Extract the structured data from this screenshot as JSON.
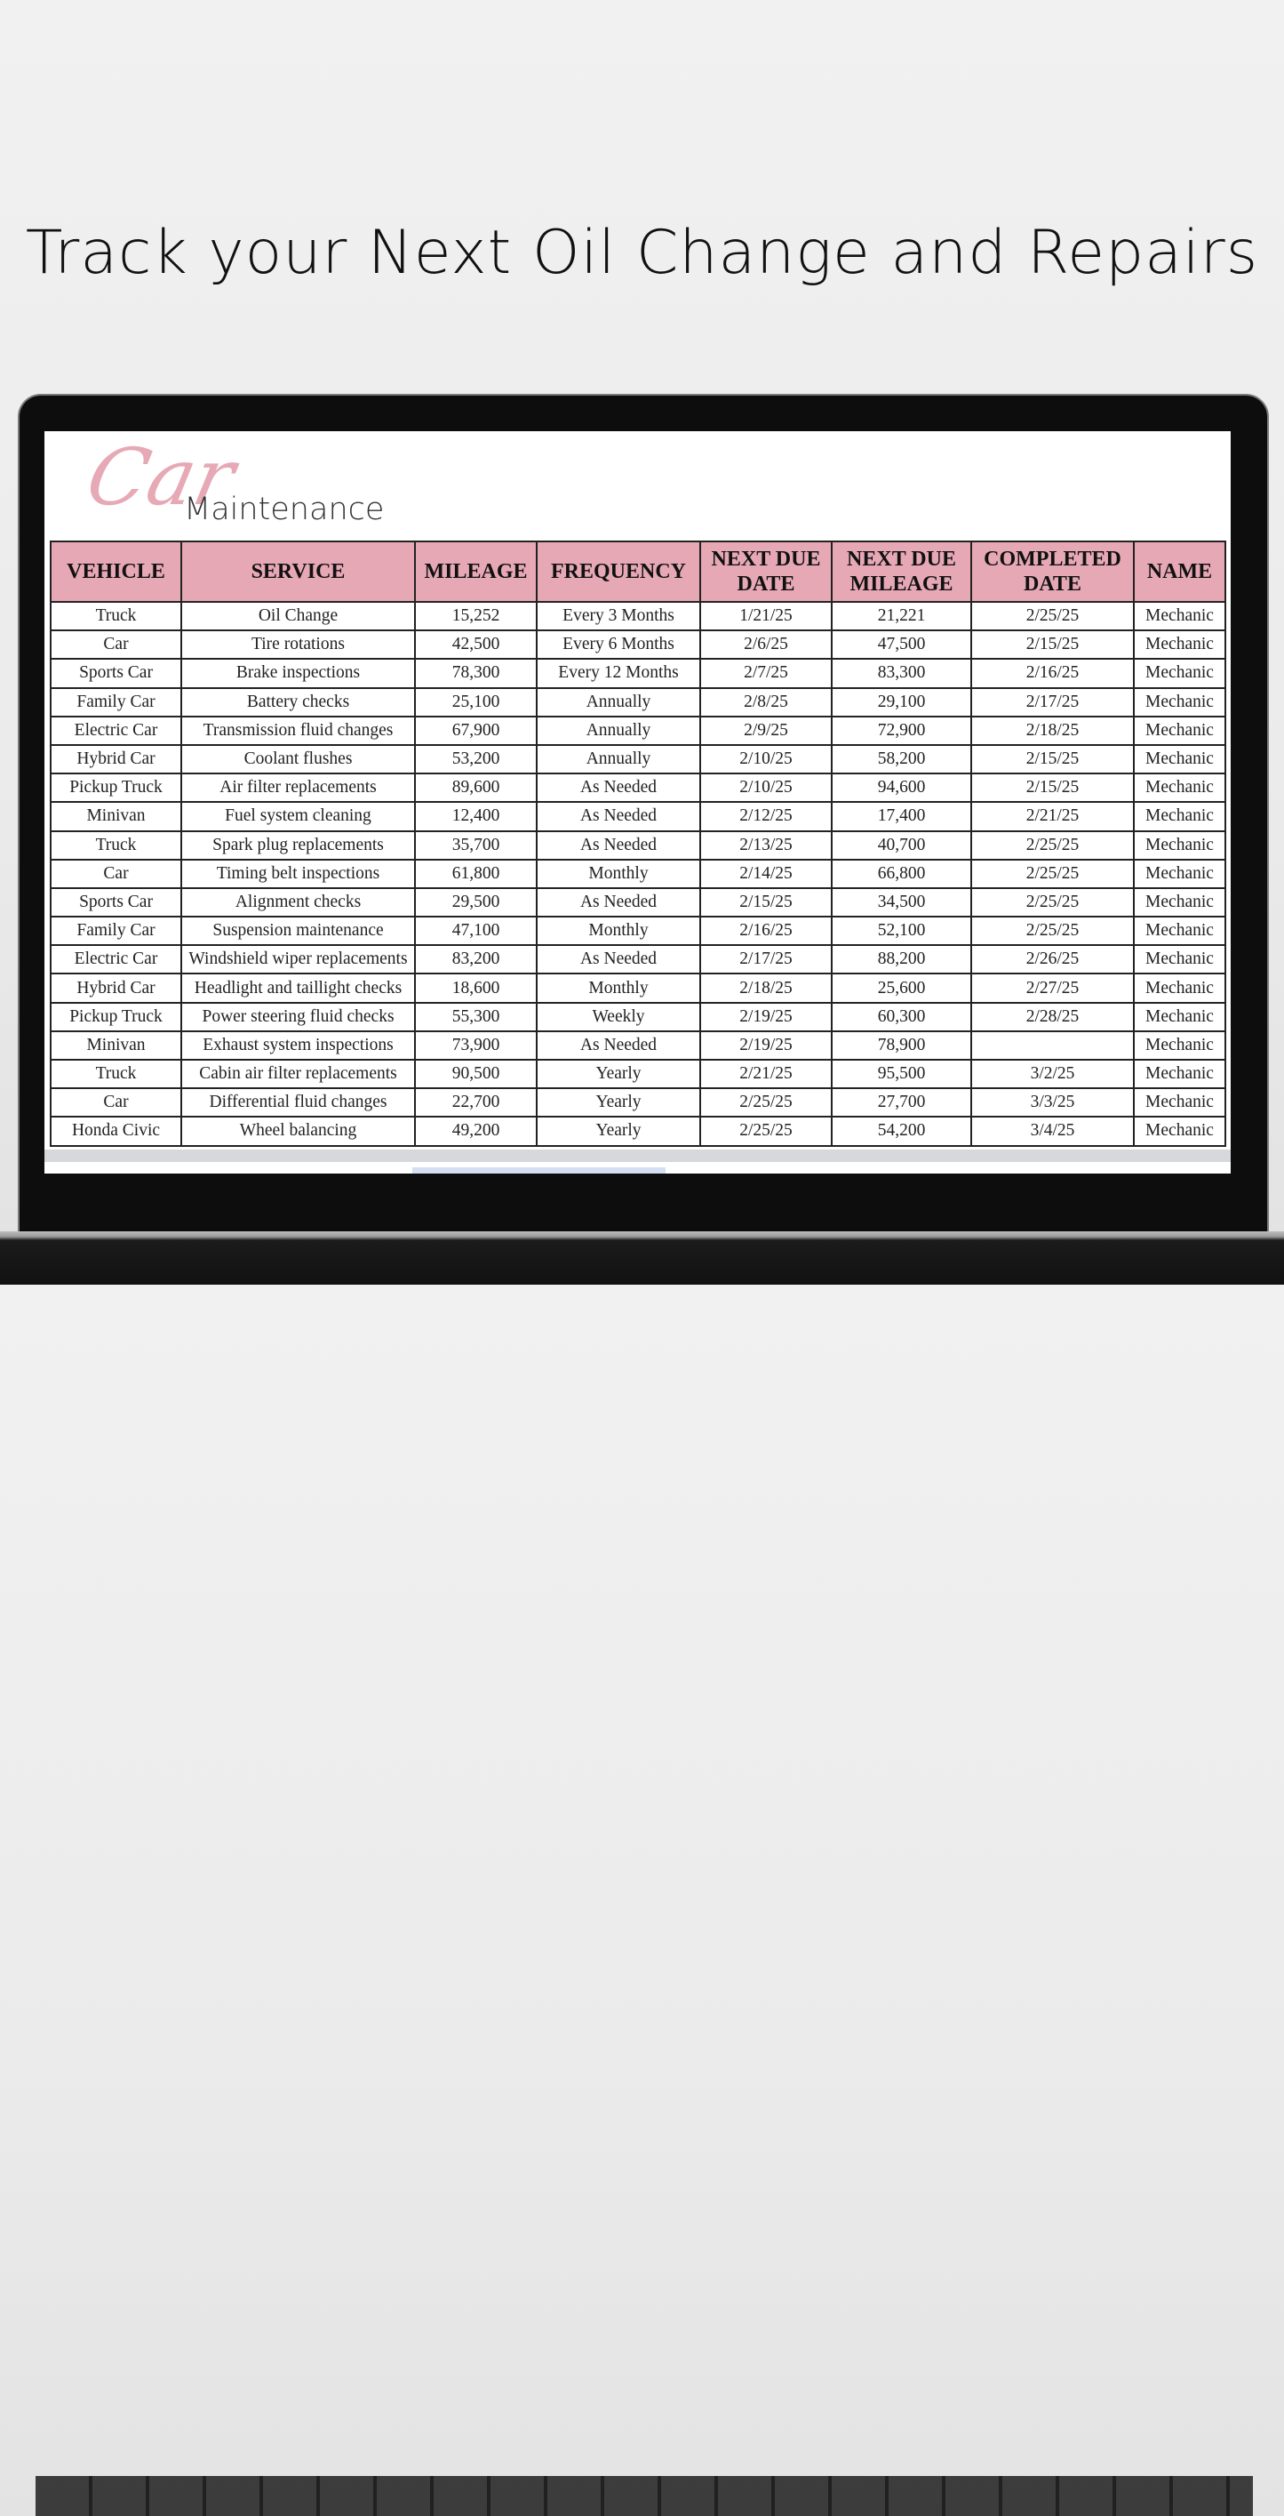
{
  "headline": "Track your Next Oil Change and Repairs",
  "logo": {
    "script": "Car",
    "word": "Maintenance"
  },
  "colors": {
    "header_bg": "#e7a8b6",
    "logo_pink": "#e6a9b5"
  },
  "table": {
    "headers": [
      "VEHICLE",
      "SERVICE",
      "MILEAGE",
      "FREQUENCY",
      "NEXT DUE DATE",
      "NEXT DUE MILEAGE",
      "COMPLETED DATE",
      "NAME"
    ],
    "rows": [
      [
        "Truck",
        "Oil Change",
        "15,252",
        "Every 3 Months",
        "1/21/25",
        "21,221",
        "2/25/25",
        "Mechanic"
      ],
      [
        "Car",
        "Tire rotations",
        "42,500",
        "Every 6 Months",
        "2/6/25",
        "47,500",
        "2/15/25",
        "Mechanic"
      ],
      [
        "Sports Car",
        "Brake inspections",
        "78,300",
        "Every 12 Months",
        "2/7/25",
        "83,300",
        "2/16/25",
        "Mechanic"
      ],
      [
        "Family Car",
        "Battery checks",
        "25,100",
        "Annually",
        "2/8/25",
        "29,100",
        "2/17/25",
        "Mechanic"
      ],
      [
        "Electric Car",
        "Transmission fluid changes",
        "67,900",
        "Annually",
        "2/9/25",
        "72,900",
        "2/18/25",
        "Mechanic"
      ],
      [
        "Hybrid Car",
        "Coolant flushes",
        "53,200",
        "Annually",
        "2/10/25",
        "58,200",
        "2/15/25",
        "Mechanic"
      ],
      [
        "Pickup Truck",
        "Air filter replacements",
        "89,600",
        "As Needed",
        "2/10/25",
        "94,600",
        "2/15/25",
        "Mechanic"
      ],
      [
        "Minivan",
        "Fuel system cleaning",
        "12,400",
        "As Needed",
        "2/12/25",
        "17,400",
        "2/21/25",
        "Mechanic"
      ],
      [
        "Truck",
        "Spark plug replacements",
        "35,700",
        "As Needed",
        "2/13/25",
        "40,700",
        "2/25/25",
        "Mechanic"
      ],
      [
        "Car",
        "Timing belt inspections",
        "61,800",
        "Monthly",
        "2/14/25",
        "66,800",
        "2/25/25",
        "Mechanic"
      ],
      [
        "Sports Car",
        "Alignment checks",
        "29,500",
        "As Needed",
        "2/15/25",
        "34,500",
        "2/25/25",
        "Mechanic"
      ],
      [
        "Family Car",
        "Suspension maintenance",
        "47,100",
        "Monthly",
        "2/16/25",
        "52,100",
        "2/25/25",
        "Mechanic"
      ],
      [
        "Electric Car",
        "Windshield wiper replacements",
        "83,200",
        "As Needed",
        "2/17/25",
        "88,200",
        "2/26/25",
        "Mechanic"
      ],
      [
        "Hybrid Car",
        "Headlight and taillight checks",
        "18,600",
        "Monthly",
        "2/18/25",
        "25,600",
        "2/27/25",
        "Mechanic"
      ],
      [
        "Pickup Truck",
        "Power steering fluid checks",
        "55,300",
        "Weekly",
        "2/19/25",
        "60,300",
        "2/28/25",
        "Mechanic"
      ],
      [
        "Minivan",
        "Exhaust system inspections",
        "73,900",
        "As Needed",
        "2/19/25",
        "78,900",
        "",
        "Mechanic"
      ],
      [
        "Truck",
        "Cabin air filter replacements",
        "90,500",
        "Yearly",
        "2/21/25",
        "95,500",
        "3/2/25",
        "Mechanic"
      ],
      [
        "Car",
        "Differential fluid changes",
        "22,700",
        "Yearly",
        "2/25/25",
        "27,700",
        "3/3/25",
        "Mechanic"
      ],
      [
        "Honda Civic",
        "Wheel balancing",
        "49,200",
        "Yearly",
        "2/25/25",
        "54,200",
        "3/4/25",
        "Mechanic"
      ]
    ]
  }
}
